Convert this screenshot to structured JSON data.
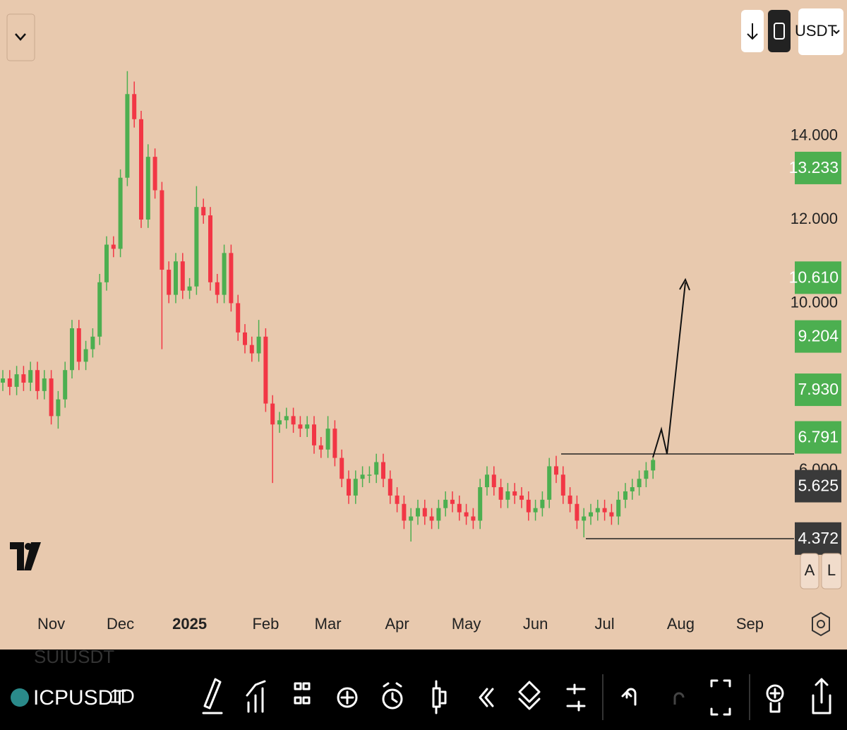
{
  "chart_data": {
    "type": "candlestick",
    "categories": [
      null,
      null,
      null,
      null,
      null,
      null,
      null,
      "Nov",
      null,
      null,
      null,
      null,
      null,
      null,
      null,
      null,
      null,
      "Dec",
      null,
      null,
      null,
      null,
      null,
      null,
      null,
      null,
      null,
      "2025",
      null,
      null,
      null,
      null,
      null,
      null,
      null,
      null,
      null,
      null,
      "Feb",
      null,
      null,
      null,
      null,
      null,
      null,
      null,
      null,
      "Mar",
      null,
      null,
      null,
      null,
      null,
      null,
      null,
      null,
      null,
      "Apr",
      null,
      null,
      null,
      null,
      null,
      null,
      null,
      null,
      null,
      "May",
      null,
      null,
      null,
      null,
      null,
      null,
      null,
      null,
      null,
      "Jun",
      null,
      null,
      null,
      null,
      null,
      null,
      null,
      null,
      null,
      "Jul",
      null,
      null,
      null,
      null,
      null,
      null,
      null,
      null,
      null,
      null,
      "Aug",
      null,
      null,
      null,
      null,
      null,
      null,
      null,
      null,
      null,
      "Sep",
      null,
      null,
      null,
      null,
      null,
      null
    ],
    "open": [
      8.1,
      8.2,
      8.0,
      8.3,
      8.1,
      8.4,
      7.9,
      8.2,
      7.3,
      7.7,
      8.4,
      9.4,
      8.6,
      8.9,
      9.2,
      10.5,
      11.4,
      11.3,
      13.0,
      15.0,
      14.4,
      12.0,
      13.5,
      12.7,
      10.8,
      10.2,
      11.0,
      10.3,
      10.4,
      12.3,
      12.1,
      10.5,
      10.2,
      11.2,
      10.0,
      9.3,
      9.0,
      8.8,
      9.2,
      7.6,
      7.1,
      7.2,
      7.3,
      7.1,
      7.0,
      7.1,
      6.6,
      6.5,
      7.0,
      6.3,
      5.8,
      5.4,
      5.8,
      5.9,
      5.9,
      6.2,
      5.8,
      5.4,
      5.2,
      4.8,
      4.9,
      5.1,
      4.9,
      4.8,
      5.1,
      5.3,
      5.2,
      5.0,
      4.9,
      4.8,
      5.6,
      5.9,
      5.6,
      5.3,
      5.5,
      5.4,
      5.3,
      5.0,
      5.1,
      5.3,
      6.1,
      5.9,
      5.4,
      5.2,
      4.8,
      4.9,
      5.0,
      5.1,
      5.0,
      4.9,
      5.3,
      5.5,
      5.6,
      5.8,
      6.0,
      null,
      null,
      null,
      null,
      null,
      null,
      null,
      null,
      null,
      null,
      null,
      null,
      null,
      null,
      null,
      null,
      null,
      null,
      null,
      null
    ],
    "high": [
      8.4,
      8.4,
      8.5,
      8.5,
      8.6,
      8.6,
      8.4,
      8.4,
      7.9,
      8.6,
      9.6,
      9.6,
      9.1,
      9.4,
      10.7,
      11.6,
      11.6,
      13.2,
      15.55,
      15.3,
      14.6,
      13.8,
      13.7,
      12.9,
      11.0,
      11.2,
      11.2,
      10.6,
      12.8,
      12.5,
      12.3,
      10.7,
      11.4,
      11.4,
      10.2,
      9.5,
      9.2,
      9.6,
      9.4,
      7.8,
      7.4,
      7.5,
      7.5,
      7.3,
      7.3,
      7.3,
      6.8,
      7.3,
      7.2,
      6.5,
      6.0,
      6.0,
      6.1,
      6.1,
      6.4,
      6.4,
      6.0,
      5.6,
      5.4,
      5.1,
      5.3,
      5.3,
      5.1,
      5.3,
      5.5,
      5.5,
      5.4,
      5.2,
      5.1,
      5.8,
      6.1,
      6.1,
      5.8,
      5.7,
      5.7,
      5.6,
      5.5,
      5.3,
      5.5,
      6.3,
      6.35,
      6.1,
      5.6,
      5.4,
      5.1,
      5.2,
      5.3,
      5.3,
      5.2,
      5.5,
      5.7,
      5.8,
      6.0,
      6.2,
      6.3,
      null,
      null,
      null,
      null,
      null,
      null,
      null,
      null,
      null,
      null,
      null,
      null,
      null,
      null,
      null,
      null,
      null,
      null,
      null,
      null
    ],
    "low": [
      7.9,
      7.8,
      7.8,
      7.9,
      7.9,
      7.7,
      7.7,
      7.1,
      7.0,
      7.5,
      8.2,
      8.4,
      8.4,
      8.7,
      9.0,
      10.3,
      11.1,
      11.1,
      12.8,
      14.2,
      11.8,
      11.8,
      12.5,
      8.9,
      10.0,
      10.0,
      10.1,
      10.1,
      10.2,
      11.9,
      10.3,
      10.0,
      10.0,
      9.8,
      9.1,
      8.8,
      8.6,
      8.6,
      7.4,
      5.7,
      6.9,
      7.0,
      6.9,
      6.8,
      6.8,
      6.4,
      6.3,
      6.3,
      6.1,
      5.6,
      5.2,
      5.2,
      5.6,
      5.7,
      5.7,
      5.6,
      5.2,
      5.0,
      4.6,
      4.3,
      4.7,
      4.7,
      4.6,
      4.6,
      4.9,
      5.0,
      4.8,
      4.7,
      4.6,
      4.6,
      5.4,
      5.4,
      5.1,
      5.1,
      5.2,
      5.1,
      4.8,
      4.8,
      4.9,
      5.1,
      5.7,
      5.2,
      5.0,
      4.6,
      4.4,
      4.7,
      4.8,
      4.8,
      4.7,
      4.7,
      5.1,
      5.3,
      5.4,
      5.6,
      5.8,
      null,
      null,
      null,
      null,
      null,
      null,
      null,
      null,
      null,
      null,
      null,
      null,
      null,
      null,
      null,
      null,
      null,
      null,
      null,
      null
    ],
    "close": [
      8.2,
      8.0,
      8.3,
      8.1,
      8.4,
      7.9,
      8.2,
      7.3,
      7.7,
      8.4,
      9.4,
      8.6,
      8.9,
      9.2,
      10.5,
      11.4,
      11.3,
      13.0,
      15.0,
      14.4,
      12.0,
      13.5,
      12.7,
      10.8,
      10.2,
      11.0,
      10.3,
      10.4,
      12.3,
      12.1,
      10.5,
      10.2,
      11.2,
      10.0,
      9.3,
      9.0,
      8.8,
      9.2,
      7.6,
      7.1,
      7.2,
      7.3,
      7.1,
      7.0,
      7.1,
      6.6,
      6.5,
      7.0,
      6.3,
      5.8,
      5.4,
      5.8,
      5.9,
      5.9,
      6.2,
      5.8,
      5.4,
      5.2,
      4.8,
      4.9,
      5.1,
      4.9,
      4.8,
      5.1,
      5.3,
      5.2,
      5.0,
      4.9,
      4.8,
      5.6,
      5.9,
      5.6,
      5.3,
      5.5,
      5.4,
      5.3,
      5.0,
      5.1,
      5.3,
      6.1,
      5.9,
      5.4,
      5.2,
      4.8,
      4.9,
      5.0,
      5.1,
      5.0,
      4.9,
      5.3,
      5.5,
      5.6,
      5.8,
      6.0,
      6.25,
      null,
      null,
      null,
      null,
      null,
      null,
      null,
      null,
      null,
      null,
      null,
      null,
      null,
      null,
      null,
      null,
      null,
      null,
      null,
      null
    ],
    "up_color": "#4caf50",
    "down_color": "#f23645",
    "ylim": [
      2.9,
      17.25
    ],
    "yticks": [
      {
        "value": 6,
        "label": "6.000"
      },
      {
        "value": 10,
        "label": "10.000"
      },
      {
        "value": 12,
        "label": "12.000"
      },
      {
        "value": 14,
        "label": "14.000"
      }
    ],
    "price_labels": [
      {
        "value": 13.233,
        "label": "13.233",
        "color": "#4caf50"
      },
      {
        "value": 10.61,
        "label": "10.610",
        "color": "#4caf50"
      },
      {
        "value": 9.204,
        "label": "9.204",
        "color": "#4caf50"
      },
      {
        "value": 7.93,
        "label": "7.930",
        "color": "#4caf50"
      },
      {
        "value": 6.791,
        "label": "6.791",
        "color": "#4caf50"
      },
      {
        "value": 5.625,
        "label": "5.625",
        "color": "#3a3a3a"
      },
      {
        "value": 4.372,
        "label": "4.372",
        "color": "#3a3a3a"
      }
    ]
  },
  "ui": {
    "currency": "USDT",
    "symbol": "ICPUSDT",
    "interval": "1D",
    "ghost_symbol": "SUIUSDT",
    "auto": "A",
    "log": "L"
  }
}
